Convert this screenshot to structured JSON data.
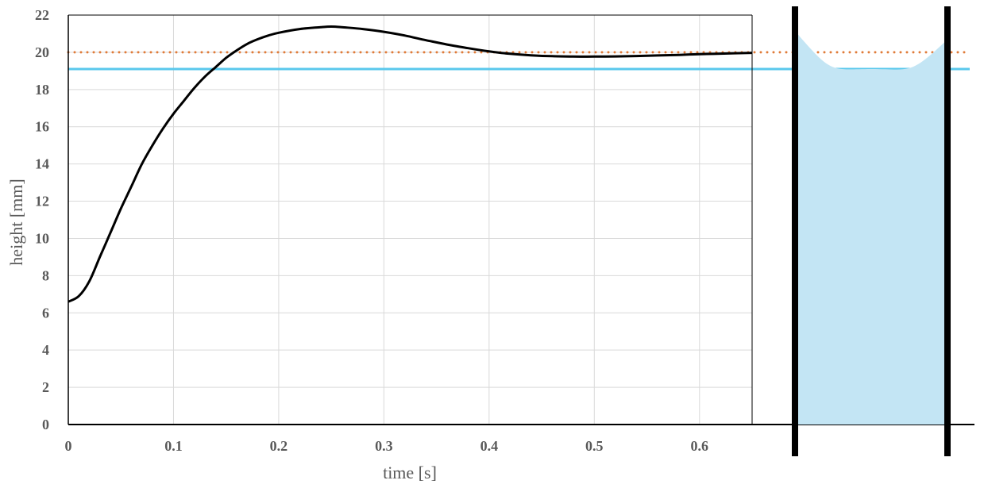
{
  "chart_data": {
    "type": "line",
    "title": "",
    "xlabel": "time [s]",
    "ylabel": "height [mm]",
    "xlim": [
      0,
      0.65
    ],
    "ylim": [
      0,
      22
    ],
    "x_ticks": [
      "0",
      "0.1",
      "0.2",
      "0.3",
      "0.4",
      "0.5",
      "0.6"
    ],
    "y_ticks": [
      "0",
      "2",
      "4",
      "6",
      "8",
      "10",
      "12",
      "14",
      "16",
      "18",
      "20",
      "22"
    ],
    "grid": true,
    "legend": "none",
    "series": [
      {
        "color": "#000000",
        "x": [
          0,
          0.01,
          0.02,
          0.03,
          0.04,
          0.05,
          0.06,
          0.07,
          0.08,
          0.09,
          0.1,
          0.11,
          0.12,
          0.13,
          0.14,
          0.15,
          0.16,
          0.17,
          0.18,
          0.19,
          0.2,
          0.22,
          0.24,
          0.25,
          0.26,
          0.28,
          0.3,
          0.32,
          0.34,
          0.36,
          0.38,
          0.4,
          0.42,
          0.44,
          0.46,
          0.48,
          0.5,
          0.52,
          0.54,
          0.56,
          0.58,
          0.6,
          0.62,
          0.65
        ],
        "y": [
          6.6,
          6.9,
          7.7,
          9.0,
          10.3,
          11.6,
          12.8,
          14.0,
          15.0,
          15.9,
          16.7,
          17.4,
          18.1,
          18.7,
          19.2,
          19.7,
          20.1,
          20.45,
          20.7,
          20.9,
          21.05,
          21.25,
          21.35,
          21.38,
          21.35,
          21.25,
          21.1,
          20.9,
          20.65,
          20.42,
          20.22,
          20.05,
          19.92,
          19.84,
          19.79,
          19.77,
          19.77,
          19.78,
          19.8,
          19.83,
          19.86,
          19.9,
          19.93,
          19.97
        ]
      }
    ],
    "reference_lines": [
      {
        "y": 20,
        "style": "dotted",
        "color": "#e07b39"
      },
      {
        "y": 19.1,
        "style": "solid",
        "color": "#5ac8ec"
      }
    ],
    "inset": {
      "fill_color": "#c3e5f4",
      "wall_color": "#000000",
      "surface_edge_level": 21.0,
      "surface_center_level": 19.1
    }
  }
}
